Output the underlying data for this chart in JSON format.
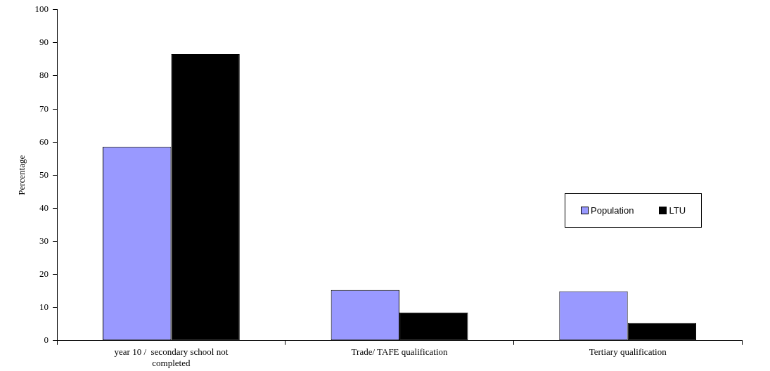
{
  "chart_data": {
    "type": "bar",
    "ylabel": "Percentage",
    "categories": [
      "year 10 /  secondary school not completed",
      "Trade/ TAFE qualification",
      "Tertiary qualification"
    ],
    "series": [
      {
        "name": "Population",
        "color": "#9999ff",
        "values": [
          58.6,
          15.3,
          14.9
        ]
      },
      {
        "name": "LTU",
        "color": "#000000",
        "values": [
          86.6,
          8.5,
          5.3
        ]
      }
    ],
    "ylim": [
      0,
      100
    ],
    "yticks": [
      0,
      10,
      20,
      30,
      40,
      50,
      60,
      70,
      80,
      90,
      100
    ],
    "grid": false,
    "legend": "right"
  }
}
